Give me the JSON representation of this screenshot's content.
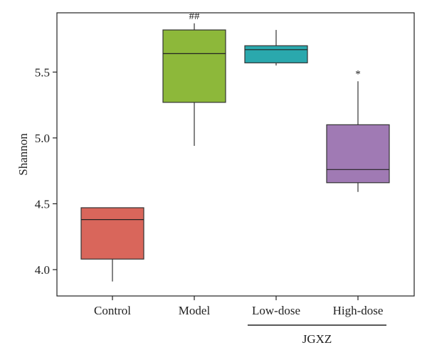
{
  "chart_data": {
    "type": "box",
    "ylabel": "Shannon",
    "xlabel": "",
    "ylim": [
      3.8,
      5.95
    ],
    "yticks": [
      4.0,
      4.5,
      5.0,
      5.5
    ],
    "ytick_labels": [
      "4.0",
      "4.5",
      "5.0",
      "5.5"
    ],
    "categories": [
      "Control",
      "Model",
      "Low-dose",
      "High-dose"
    ],
    "group_label": {
      "text": "JGXZ",
      "spans": [
        "Low-dose",
        "High-dose"
      ]
    },
    "boxes": [
      {
        "category": "Control",
        "min": 3.91,
        "q1": 4.08,
        "median": 4.38,
        "q3": 4.47,
        "max": 4.47,
        "color": "#d9665b",
        "annotation": ""
      },
      {
        "category": "Model",
        "min": 4.94,
        "q1": 5.27,
        "median": 5.64,
        "q3": 5.82,
        "max": 5.87,
        "color": "#8db83a",
        "annotation": "##"
      },
      {
        "category": "Low-dose",
        "min": 5.55,
        "q1": 5.57,
        "median": 5.67,
        "q3": 5.7,
        "max": 5.82,
        "color": "#2aa8ad",
        "annotation": ""
      },
      {
        "category": "High-dose",
        "min": 4.59,
        "q1": 4.66,
        "median": 4.76,
        "q3": 5.1,
        "max": 5.43,
        "color": "#a07ab4",
        "annotation": "*"
      }
    ]
  }
}
